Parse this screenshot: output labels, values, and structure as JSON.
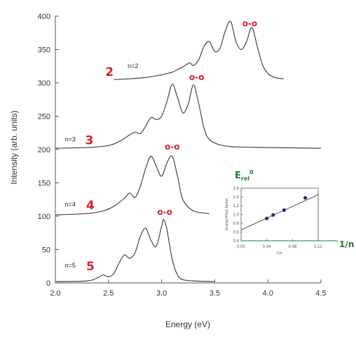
{
  "chart_data": {
    "type": "line",
    "xlabel": "Energy (eV)",
    "ylabel": "Intensity (arb. units)",
    "xlim": [
      2.0,
      4.5
    ],
    "ylim": [
      0,
      400
    ],
    "xticks": [
      2.0,
      2.5,
      3.0,
      3.5,
      4.0,
      4.5
    ],
    "xtick_labels": [
      "2.0",
      "2.5",
      "3.0",
      "3.5",
      "4.0",
      "4.5"
    ],
    "yticks": [
      0,
      50,
      100,
      150,
      200,
      250,
      300,
      350,
      400
    ],
    "ytick_labels": [
      "0",
      "50",
      "100",
      "150",
      "200",
      "250",
      "300",
      "350",
      "400"
    ],
    "grid": false,
    "series": [
      {
        "name": "n=2",
        "color": "#444444",
        "handwritten_number": "2",
        "zero_zero_label": "o-o",
        "baseline": 305,
        "x": [
          2.55,
          2.7,
          2.85,
          3.0,
          3.05,
          3.1,
          3.15,
          3.2,
          3.25,
          3.27,
          3.3,
          3.35,
          3.4,
          3.45,
          3.5,
          3.55,
          3.6,
          3.65,
          3.7,
          3.75,
          3.8,
          3.85,
          3.9,
          3.95,
          4.0,
          4.05,
          4.1,
          4.15
        ],
        "values": [
          305,
          306,
          308,
          312,
          314,
          316,
          320,
          324,
          329,
          330,
          326,
          335,
          355,
          362,
          347,
          352,
          378,
          392,
          362,
          350,
          362,
          383,
          355,
          327,
          314,
          309,
          307,
          306
        ]
      },
      {
        "name": "n=3",
        "color": "#444444",
        "handwritten_number": "3",
        "zero_zero_label": "o-o",
        "baseline": 202,
        "x": [
          2.0,
          2.3,
          2.5,
          2.6,
          2.7,
          2.75,
          2.8,
          2.85,
          2.9,
          2.95,
          3.0,
          3.05,
          3.1,
          3.15,
          3.2,
          3.25,
          3.3,
          3.35,
          3.4,
          3.45,
          3.55,
          3.7,
          4.0,
          4.5
        ],
        "values": [
          202,
          203,
          206,
          212,
          222,
          226,
          224,
          235,
          248,
          245,
          250,
          272,
          298,
          278,
          255,
          268,
          297,
          268,
          232,
          215,
          207,
          204,
          203,
          202
        ]
      },
      {
        "name": "n=4",
        "color": "#444444",
        "handwritten_number": "4",
        "zero_zero_label": "o-o",
        "baseline": 102,
        "x": [
          2.0,
          2.3,
          2.45,
          2.55,
          2.65,
          2.7,
          2.75,
          2.8,
          2.85,
          2.9,
          2.95,
          3.0,
          3.05,
          3.1,
          3.15,
          3.2,
          3.3,
          3.45
        ],
        "values": [
          102,
          104,
          108,
          115,
          127,
          135,
          128,
          145,
          172,
          190,
          175,
          160,
          180,
          190,
          160,
          125,
          108,
          104
        ]
      },
      {
        "name": "n=5",
        "color": "#444444",
        "handwritten_number": "5",
        "zero_zero_label": "o-o",
        "baseline": 2,
        "x": [
          2.0,
          2.3,
          2.4,
          2.45,
          2.5,
          2.55,
          2.6,
          2.65,
          2.7,
          2.75,
          2.8,
          2.85,
          2.9,
          2.95,
          3.0,
          3.02,
          3.05,
          3.1,
          3.15,
          3.2,
          3.3,
          3.5
        ],
        "values": [
          2,
          3,
          8,
          12,
          9,
          14,
          30,
          42,
          37,
          45,
          70,
          82,
          64,
          55,
          85,
          95,
          80,
          35,
          12,
          5,
          3,
          2
        ]
      }
    ],
    "inset": {
      "type": "scatter",
      "title": "E_rel^0",
      "xlabel": "1/n",
      "ylabel": "Huang-Rhys factor",
      "handwritten_axis_label": "1/n",
      "xlim": [
        0.0,
        0.12
      ],
      "ylim": [
        0.4,
        1.6
      ],
      "xtick_labels": [
        "0.00",
        "0.04",
        "0.08",
        "0.12"
      ],
      "xticks": [
        0.0,
        0.04,
        0.08,
        0.12
      ],
      "ytick_labels": [
        "0.4",
        "0.6",
        "0.8",
        "1.0",
        "1.2",
        "1.4",
        "1.6"
      ],
      "yticks": [
        0.4,
        0.6,
        0.8,
        1.0,
        1.2,
        1.4,
        1.6
      ],
      "x": [
        0.04,
        0.05,
        0.067,
        0.1
      ],
      "values": [
        0.91,
        0.99,
        1.1,
        1.38
      ],
      "fit": {
        "x": [
          0.0,
          0.12
        ],
        "values": [
          0.65,
          1.45
        ]
      }
    }
  }
}
